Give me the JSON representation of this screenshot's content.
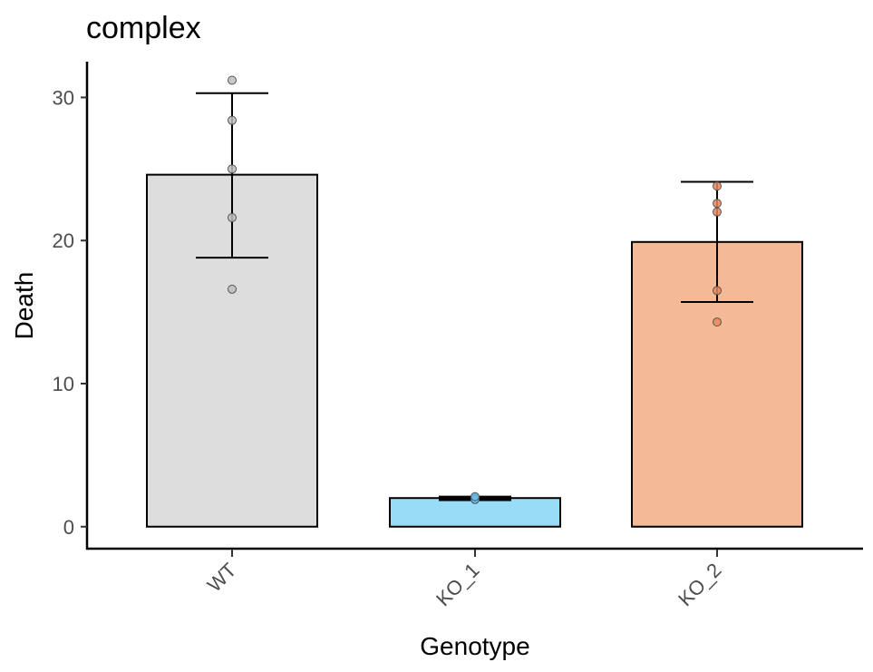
{
  "chart_data": {
    "type": "bar",
    "title": "complex",
    "xlabel": "Genotype",
    "ylabel": "Death",
    "ylim": [
      -1.6,
      32.5
    ],
    "yticks": [
      0,
      10,
      20,
      30
    ],
    "categories": [
      "WT",
      "KO_1",
      "KO_2"
    ],
    "values": [
      24.6,
      2.0,
      19.9
    ],
    "error_low": [
      18.8,
      1.9,
      15.7
    ],
    "error_high": [
      30.3,
      2.05,
      24.1
    ],
    "points": [
      [
        31.2,
        28.4,
        25.0,
        21.6,
        16.6
      ],
      [
        2.05,
        2.0,
        1.95,
        1.9,
        2.1
      ],
      [
        23.8,
        22.6,
        22.0,
        16.5,
        14.3
      ]
    ],
    "colors": [
      "#dddddd",
      "#99dcf7",
      "#f4b996"
    ],
    "point_colors": [
      "#bdbdbd",
      "#66bde8",
      "#e8875a"
    ],
    "legend": "none",
    "grid": false
  }
}
